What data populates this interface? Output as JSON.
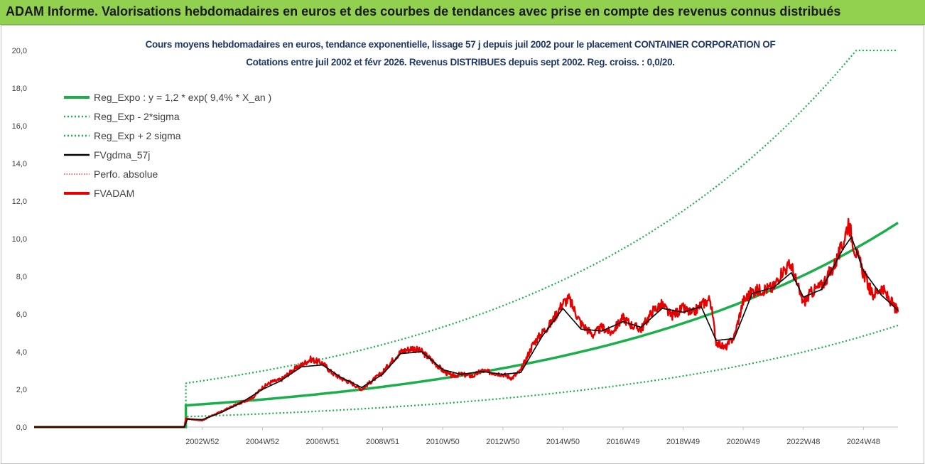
{
  "header": {
    "title": "ADAM Informe. Valorisations hebdomadaires en euros et des courbes de tendances avec prise en compte des revenus connus distribués"
  },
  "colors": {
    "header_bg": "#92d050",
    "reg_expo": "#1aaf4b",
    "sigma": "#1aaf4b",
    "fvgdma": "#000000",
    "perfo": "#e11d1d",
    "fvadam": "#e60000"
  },
  "chart_data": {
    "type": "line",
    "title": "Cours moyens hebdomadaires en euros, tendance exponentielle, lissage 57 j depuis juil 2002 pour le placement CONTAINER CORPORATION OF",
    "subtitle": "Cotations entre juil 2002 et févr 2026.  Revenus DISTRIBUES depuis sept 2002.  Reg. croiss. : 0,0/20.",
    "xlabel": "",
    "ylabel": "",
    "x_tick_labels": [
      "2002W52",
      "2004W52",
      "2006W51",
      "2008W51",
      "2010W50",
      "2012W50",
      "2014W50",
      "2016W49",
      "2018W49",
      "2020W49",
      "2022W48",
      "2024W48"
    ],
    "x_ticks_years": [
      2003.0,
      2005.0,
      2007.0,
      2009.0,
      2011.0,
      2013.0,
      2015.0,
      2017.0,
      2019.0,
      2021.0,
      2023.0,
      2025.0
    ],
    "x_range_years": [
      1997.4,
      2026.15
    ],
    "y_ticks": [
      "0,0",
      "2,0",
      "4,0",
      "6,0",
      "8,0",
      "10,0",
      "12,0",
      "14,0",
      "16,0",
      "18,0",
      "20,0"
    ],
    "ylim": [
      0,
      20
    ],
    "grid": false,
    "legend_placement": "top-left",
    "legend": [
      {
        "label": "Reg_Expo : y = 1,2 * exp( 9,4% *  X_an )",
        "style": "solid-thick",
        "color": "#1aaf4b"
      },
      {
        "label": "Reg_Exp - 2*sigma",
        "style": "dotted",
        "color": "#1aaf4b"
      },
      {
        "label": "Reg_Exp + 2 sigma",
        "style": "dotted",
        "color": "#1aaf4b"
      },
      {
        "label": "FVgdma_57j",
        "style": "solid",
        "color": "#000000"
      },
      {
        "label": "Perfo. absolue",
        "style": "dotted-thin",
        "color": "#e11d1d"
      },
      {
        "label": "FVADAM",
        "style": "solid-thick",
        "color": "#e60000"
      }
    ],
    "series": [
      {
        "name": "FVADAM",
        "x": [
          1997.4,
          2002.4,
          2002.45,
          2002.7,
          2003.0,
          2003.3,
          2003.6,
          2004.0,
          2004.3,
          2004.7,
          2005.0,
          2005.3,
          2005.6,
          2006.0,
          2006.3,
          2006.6,
          2007.0,
          2007.3,
          2007.6,
          2008.0,
          2008.3,
          2008.6,
          2009.0,
          2009.3,
          2009.6,
          2010.0,
          2010.3,
          2010.6,
          2011.0,
          2011.3,
          2011.6,
          2012.0,
          2012.3,
          2012.6,
          2013.0,
          2013.3,
          2013.6,
          2014.0,
          2014.3,
          2014.6,
          2015.0,
          2015.2,
          2015.6,
          2016.0,
          2016.3,
          2016.6,
          2017.0,
          2017.3,
          2017.6,
          2018.0,
          2018.3,
          2018.6,
          2019.0,
          2019.3,
          2019.6,
          2019.9,
          2020.1,
          2020.4,
          2020.7,
          2021.0,
          2021.3,
          2021.6,
          2022.0,
          2022.3,
          2022.6,
          2022.8,
          2023.0,
          2023.3,
          2023.6,
          2024.0,
          2024.3,
          2024.5,
          2024.7,
          2025.0,
          2025.3,
          2025.6,
          2026.15
        ],
        "values": [
          0.0,
          0.0,
          0.45,
          0.4,
          0.35,
          0.6,
          0.8,
          1.1,
          1.3,
          1.6,
          2.1,
          2.4,
          2.5,
          3.0,
          3.3,
          3.6,
          3.4,
          2.9,
          2.6,
          2.3,
          2.0,
          2.4,
          2.9,
          3.5,
          4.0,
          4.2,
          4.0,
          3.6,
          3.0,
          2.7,
          2.8,
          2.7,
          3.0,
          2.9,
          2.8,
          2.6,
          3.0,
          4.4,
          5.0,
          5.5,
          6.6,
          6.8,
          5.5,
          4.9,
          5.3,
          5.0,
          5.8,
          5.4,
          5.2,
          6.2,
          6.5,
          5.9,
          6.3,
          6.0,
          6.5,
          6.8,
          4.5,
          4.2,
          4.8,
          6.7,
          7.2,
          7.3,
          7.4,
          8.3,
          8.6,
          7.5,
          6.6,
          7.2,
          7.5,
          8.5,
          9.6,
          10.9,
          9.5,
          8.2,
          7.0,
          7.4,
          6.1
        ]
      },
      {
        "name": "FVgdma_57j",
        "x": [
          1997.4,
          2002.4,
          2002.5,
          2003.0,
          2003.6,
          2004.3,
          2005.0,
          2005.6,
          2006.3,
          2007.0,
          2007.6,
          2008.3,
          2009.0,
          2009.6,
          2010.3,
          2011.0,
          2011.6,
          2012.3,
          2013.0,
          2013.6,
          2014.3,
          2015.0,
          2015.6,
          2016.3,
          2017.0,
          2017.6,
          2018.3,
          2019.0,
          2019.6,
          2020.1,
          2020.7,
          2021.3,
          2022.0,
          2022.6,
          2023.0,
          2023.6,
          2024.3,
          2024.6,
          2025.0,
          2025.6,
          2026.15
        ],
        "values": [
          0.0,
          0.0,
          0.42,
          0.4,
          0.75,
          1.3,
          2.0,
          2.45,
          3.2,
          3.3,
          2.65,
          2.1,
          2.8,
          3.9,
          4.0,
          3.05,
          2.8,
          2.95,
          2.8,
          2.9,
          4.8,
          6.3,
          5.2,
          5.1,
          5.6,
          5.3,
          6.3,
          6.1,
          6.4,
          4.6,
          4.7,
          7.1,
          7.4,
          8.2,
          6.9,
          7.3,
          9.4,
          10.1,
          8.3,
          7.0,
          6.2
        ]
      }
    ],
    "regression": {
      "name": "Reg_Expo",
      "start_x": 2002.45,
      "start_value": 1.15,
      "end_value": 10.85,
      "band_minus_start": 0.55,
      "band_minus_end": 5.4,
      "band_plus_start": 2.33,
      "band_plus_end_cap": 20.0
    }
  }
}
